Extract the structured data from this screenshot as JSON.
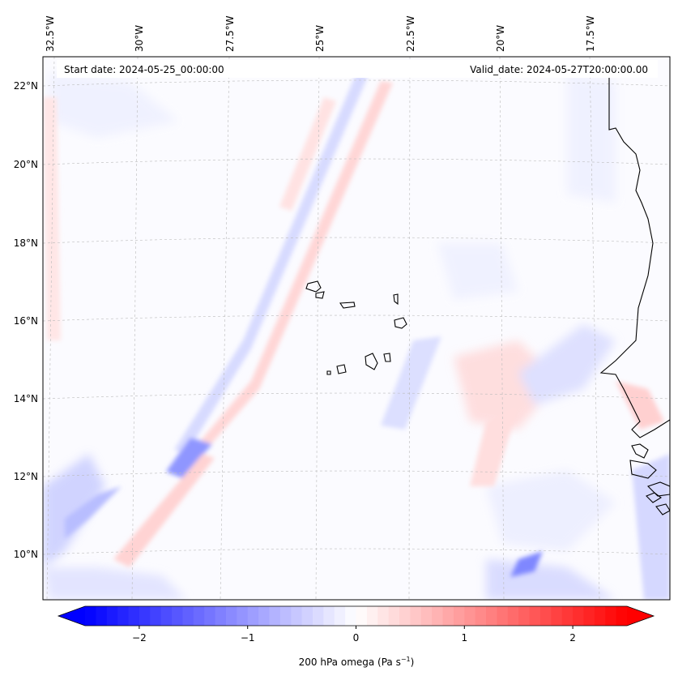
{
  "map": {
    "start_date": "Start date: 2024-05-25_00:00:00",
    "valid_date": "Valid_date: 2024-05-27T20:00:00.00",
    "lon_labels": [
      "32.5°W",
      "30°W",
      "27.5°W",
      "25°W",
      "22.5°W",
      "20°W",
      "17.5°W"
    ],
    "lat_labels": [
      "22°N",
      "20°N",
      "18°N",
      "16°N",
      "14°N",
      "12°N",
      "10°N"
    ],
    "gridlines": true,
    "coastline_color": "#000000"
  },
  "colorbar": {
    "label_main": "200 hPa omega (Pa s",
    "label_exp": "−1",
    "label_end": ")",
    "ticks": [
      "−2",
      "−1",
      "0",
      "1",
      "2"
    ],
    "tick_values": [
      -2,
      -1,
      0,
      1,
      2
    ],
    "range": [
      -2.5,
      2.5
    ],
    "colormap": "bwr",
    "low_color": "#0000ff",
    "mid_color": "#ffffff",
    "high_color": "#ff0000",
    "extend": "both"
  }
}
